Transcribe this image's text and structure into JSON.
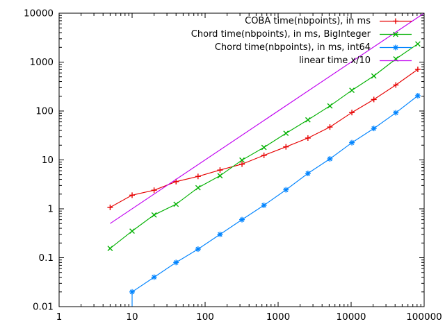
{
  "chart_data": {
    "type": "line",
    "title": "",
    "xlabel": "",
    "ylabel": "",
    "x_scale": "log",
    "y_scale": "log",
    "xlim": [
      1,
      100000
    ],
    "ylim": [
      0.01,
      10000
    ],
    "grid": false,
    "legend_position": "top-right-inside",
    "x_tick_values": [
      1,
      10,
      100,
      1000,
      10000,
      100000
    ],
    "x_tick_labels": [
      "1",
      "10",
      "100",
      "1000",
      "10000",
      "100000"
    ],
    "y_tick_values": [
      10000,
      1000,
      100,
      10,
      1,
      0.1,
      0.01
    ],
    "y_tick_labels": [
      "10000",
      "1000",
      "100",
      "10",
      "1",
      "0.1",
      "0.01"
    ],
    "series": [
      {
        "name": "COBA time(nbpoints), in ms",
        "color": "#e60000",
        "marker": "plus",
        "points": [
          [
            5,
            1.07
          ],
          [
            10,
            1.9
          ],
          [
            20,
            2.4
          ],
          [
            40,
            3.6
          ],
          [
            80,
            4.6
          ],
          [
            160,
            6.2
          ],
          [
            320,
            8.2
          ],
          [
            640,
            12.4
          ],
          [
            1280,
            18.5
          ],
          [
            2560,
            28
          ],
          [
            5120,
            47
          ],
          [
            10240,
            93
          ],
          [
            20480,
            172
          ],
          [
            40960,
            340
          ],
          [
            81920,
            710
          ]
        ]
      },
      {
        "name": "Chord time(nbpoints), in ms, BigInteger",
        "color": "#00b000",
        "marker": "cross",
        "points": [
          [
            5,
            0.155
          ],
          [
            10,
            0.35
          ],
          [
            20,
            0.75
          ],
          [
            40,
            1.24
          ],
          [
            80,
            2.7
          ],
          [
            160,
            4.75
          ],
          [
            320,
            9.9
          ],
          [
            640,
            18
          ],
          [
            1280,
            35
          ],
          [
            2560,
            66
          ],
          [
            5120,
            127
          ],
          [
            10240,
            265
          ],
          [
            20480,
            520
          ],
          [
            40960,
            1160
          ],
          [
            81920,
            2350
          ]
        ]
      },
      {
        "name": "Chord time(nbpoints), in ms, int64",
        "color": "#0084ff",
        "marker": "asterisk",
        "line_prefix": [
          [
            10,
            0.01
          ]
        ],
        "points": [
          [
            10,
            0.02
          ],
          [
            20,
            0.04
          ],
          [
            40,
            0.08
          ],
          [
            80,
            0.15
          ],
          [
            160,
            0.3
          ],
          [
            320,
            0.6
          ],
          [
            640,
            1.18
          ],
          [
            1280,
            2.45
          ],
          [
            2560,
            5.3
          ],
          [
            5120,
            10.5
          ],
          [
            10240,
            22.5
          ],
          [
            20480,
            44
          ],
          [
            40960,
            92
          ],
          [
            81920,
            205
          ]
        ]
      },
      {
        "name": "linear time x/10",
        "color": "#c000f0",
        "marker": "none",
        "points": [
          [
            5,
            0.5
          ],
          [
            100000,
            10000
          ]
        ]
      }
    ]
  },
  "colors": {
    "background": "#ffffff",
    "axis": "#000000",
    "tick_text": "#000000"
  }
}
